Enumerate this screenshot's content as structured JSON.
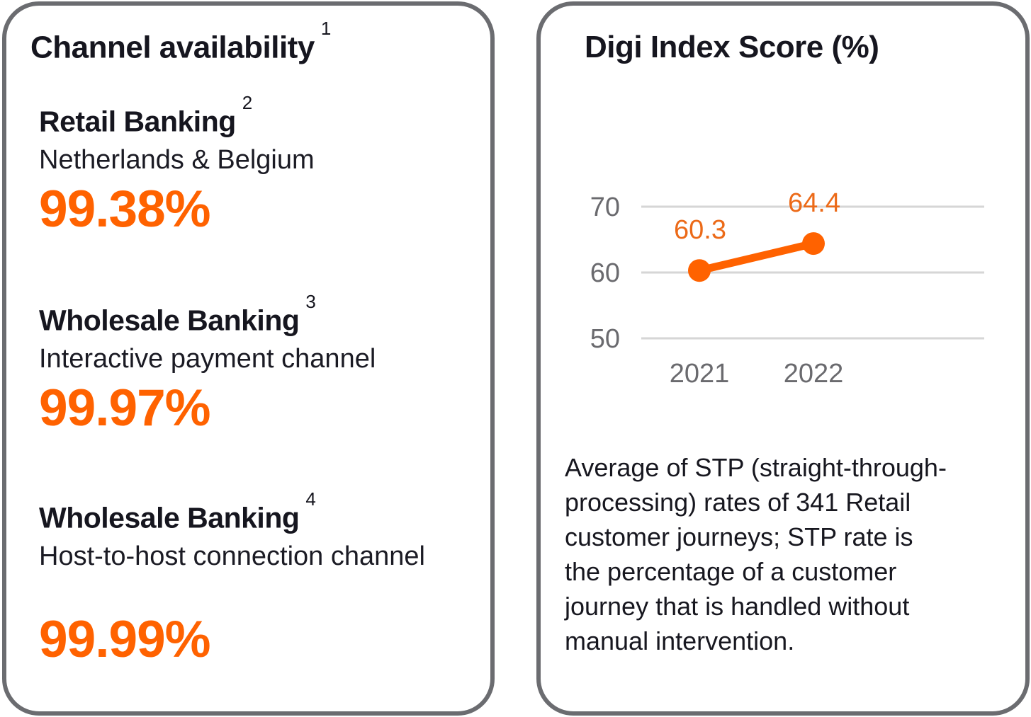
{
  "theme": {
    "accent_orange": "#FF6200",
    "text_dark": "#16161F",
    "card_border_gray": "#6B6C70",
    "background": "#FFFFFF"
  },
  "left_card": {
    "title": "Channel availability",
    "title_footnote": "1",
    "metrics": [
      {
        "heading": "Retail Banking",
        "footnote": "2",
        "subtitle": "Netherlands & Belgium",
        "value": "99.38%"
      },
      {
        "heading": "Wholesale Banking",
        "footnote": "3",
        "subtitle": "Interactive payment channel",
        "value": "99.97%"
      },
      {
        "heading": "Wholesale Banking",
        "footnote": "4",
        "subtitle": "Host-to-host connection channel",
        "value": "99.99%"
      }
    ]
  },
  "right_card": {
    "title": "Digi Index Score (%)",
    "description": "Average of STP (straight-through-\nprocessing) rates of 341 Retail\ncustomer journeys; STP rate is\nthe percentage of a customer\njourney that is handled without\nmanual intervention."
  },
  "chart_data": {
    "type": "line",
    "title": "Digi Index Score (%)",
    "x": [
      "2021",
      "2022"
    ],
    "series": [
      {
        "name": "Digi Index Score",
        "values": [
          60.3,
          64.4
        ]
      }
    ],
    "data_labels": [
      "60.3",
      "64.4"
    ],
    "yticks": [
      70,
      60,
      50
    ],
    "ylim": [
      46,
      74
    ],
    "grid": true,
    "legend": "none",
    "colors": {
      "line": "#FF6200",
      "marker": "#FF6200",
      "data_label": "#EC6A18",
      "axis_text": "#6A6A6E",
      "gridline": "#D6D6D6"
    }
  }
}
